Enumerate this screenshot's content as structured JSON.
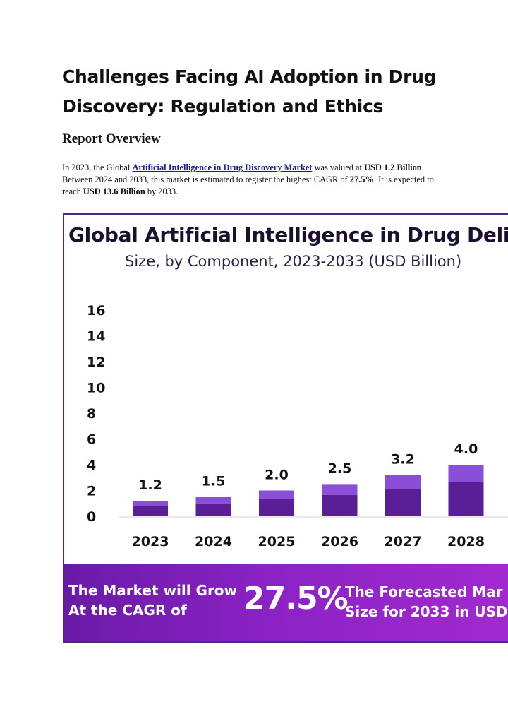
{
  "article": {
    "title": "Challenges Facing AI Adoption in Drug Discovery: Regulation and Ethics",
    "section_heading": "Report Overview",
    "paragraph": {
      "p1": "In 2023, the Global ",
      "link_text": "Artificial Intelligence in Drug Discovery Market",
      "p2": " was valued at ",
      "b1": "USD 1.2 Billion",
      "p3": ". Between 2024 and 2033, this market is estimated to register the highest CAGR of ",
      "b2": "27.5%",
      "p4": ". It is expected to reach ",
      "b3": "USD 13.6 Billion",
      "p5": " by 2033."
    }
  },
  "infographic": {
    "title": "Global Artificial Intelligence in Drug Deliv",
    "subtitle": "Size, by Component, 2023-2033 (USD Billion)",
    "banner": {
      "left_text_line1": "The Market will Grow",
      "left_text_line2": "At the CAGR of",
      "cagr": "27.5%",
      "right_text_line1": "The Forecasted Mar",
      "right_text_line2": "Size for 2033 in USD"
    }
  },
  "colors": {
    "bar_top": "#8a4fd6",
    "bar_bottom": "#5a1f96",
    "frame": "#4b2a7a",
    "link": "#1a1aa6"
  },
  "chart_data": {
    "type": "bar",
    "title": "Global Artificial Intelligence in Drug Deliv",
    "subtitle": "Size, by Component, 2023-2033 (USD Billion)",
    "categories": [
      "2023",
      "2024",
      "2025",
      "2026",
      "2027",
      "2028"
    ],
    "values": [
      1.2,
      1.5,
      2.0,
      2.5,
      3.2,
      4.0
    ],
    "value_labels": [
      "1.2",
      "1.5",
      "2.0",
      "2.5",
      "3.2",
      "4.0"
    ],
    "y_ticks": [
      0,
      2,
      4,
      6,
      8,
      10,
      12,
      14,
      16
    ],
    "ylim": [
      0,
      16
    ],
    "stacked_bottom_share": 0.66,
    "legend": "none",
    "grid": false
  }
}
